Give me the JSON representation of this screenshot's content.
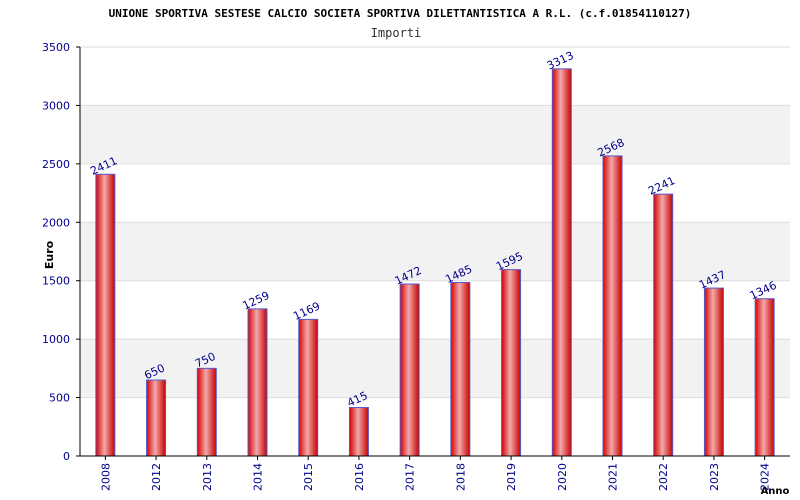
{
  "chart_data": {
    "type": "bar",
    "title": "UNIONE SPORTIVA SESTESE CALCIO SOCIETA SPORTIVA DILETTANTISTICA A R.L. (c.f.01854110127)",
    "subtitle": "Importi",
    "xlabel": "Anno",
    "ylabel": "Euro",
    "categories": [
      "2008",
      "2012",
      "2013",
      "2014",
      "2015",
      "2016",
      "2017",
      "2018",
      "2019",
      "2020",
      "2021",
      "2022",
      "2023",
      "2024"
    ],
    "values": [
      2411,
      650,
      750,
      1259,
      1169,
      415,
      1472,
      1485,
      1595,
      3313,
      2568,
      2241,
      1437,
      1346
    ],
    "ylim": [
      0,
      3500
    ],
    "yticks": [
      0,
      500,
      1000,
      1500,
      2000,
      2500,
      3000,
      3500
    ],
    "grid": true,
    "colors": {
      "bar": "#ff0000",
      "bar_highlight": "#f3a9a9",
      "bar_outline": "#5a5ac8",
      "text": "#00008b",
      "band": "#f2f2f2",
      "axis": "#000000"
    }
  }
}
